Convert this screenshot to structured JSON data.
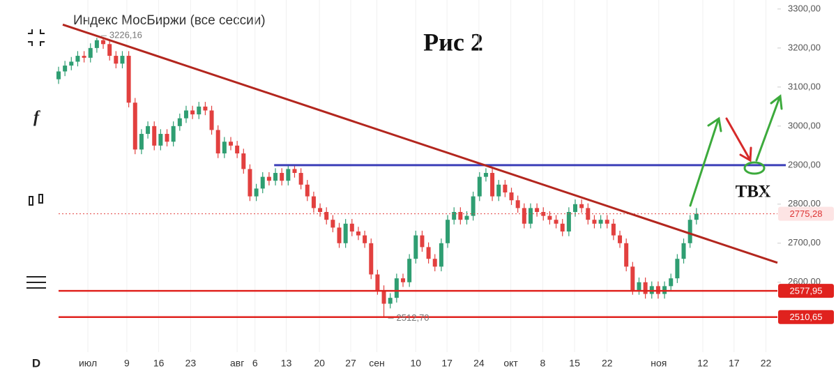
{
  "toolbar": {
    "fx": "f",
    "interval": "D"
  },
  "chart_data": {
    "type": "candlestick",
    "title": "Индекс МосБиржи (все сессии)",
    "annotations": {
      "figure": "Рис 2",
      "entry": "ТВХ"
    },
    "up_color": "#2f9e72",
    "down_color": "#e2403f",
    "open": [
      3120,
      3140,
      3155,
      3165,
      3180,
      3175,
      3200,
      3220,
      3210,
      3180,
      3160,
      3180,
      3060,
      2940,
      2980,
      3000,
      2950,
      2980,
      2960,
      3000,
      3020,
      3040,
      3030,
      3050,
      3040,
      2990,
      2930,
      2960,
      2950,
      2930,
      2890,
      2820,
      2840,
      2870,
      2860,
      2880,
      2860,
      2890,
      2880,
      2850,
      2820,
      2790,
      2780,
      2760,
      2740,
      2700,
      2750,
      2730,
      2720,
      2700,
      2620,
      2580,
      2545,
      2560,
      2610,
      2600,
      2660,
      2720,
      2690,
      2660,
      2640,
      2700,
      2760,
      2780,
      2760,
      2770,
      2820,
      2870,
      2880,
      2820,
      2850,
      2830,
      2810,
      2790,
      2750,
      2790,
      2780,
      2770,
      2760,
      2750,
      2730,
      2780,
      2800,
      2790,
      2760,
      2750,
      2760,
      2750,
      2720,
      2700,
      2640,
      2580,
      2600,
      2570,
      2590,
      2570,
      2590,
      2610,
      2660,
      2700,
      2760
    ],
    "high": [
      3152,
      3167,
      3177,
      3192,
      3192,
      3212,
      3226.16,
      3224,
      3222,
      3192,
      3192,
      3192,
      3072,
      2992,
      3012,
      3012,
      2992,
      2992,
      3012,
      3032,
      3052,
      3052,
      3062,
      3062,
      3052,
      3002,
      2972,
      2972,
      2962,
      2942,
      2902,
      2852,
      2882,
      2882,
      2892,
      2892,
      2902,
      2902,
      2892,
      2862,
      2832,
      2802,
      2792,
      2772,
      2752,
      2762,
      2762,
      2742,
      2732,
      2712,
      2632,
      2592,
      2572,
      2622,
      2622,
      2672,
      2732,
      2732,
      2702,
      2672,
      2712,
      2772,
      2792,
      2792,
      2782,
      2832,
      2882,
      2892,
      2892,
      2862,
      2862,
      2842,
      2822,
      2802,
      2802,
      2802,
      2792,
      2782,
      2772,
      2762,
      2792,
      2812,
      2812,
      2802,
      2772,
      2772,
      2772,
      2762,
      2732,
      2712,
      2652,
      2612,
      2612,
      2602,
      2602,
      2602,
      2622,
      2672,
      2712,
      2772,
      2790
    ],
    "low": [
      3108,
      3128,
      3143,
      3153,
      3163,
      3163,
      3188,
      3198,
      3168,
      3148,
      3148,
      3048,
      2928,
      2928,
      2968,
      2938,
      2938,
      2948,
      2948,
      2988,
      3008,
      3018,
      3018,
      3028,
      2978,
      2918,
      2918,
      2938,
      2918,
      2878,
      2808,
      2808,
      2828,
      2848,
      2848,
      2848,
      2848,
      2868,
      2838,
      2808,
      2778,
      2768,
      2748,
      2728,
      2688,
      2688,
      2718,
      2708,
      2688,
      2608,
      2568,
      2512.7,
      2533,
      2548,
      2588,
      2588,
      2648,
      2678,
      2648,
      2628,
      2628,
      2688,
      2748,
      2748,
      2748,
      2758,
      2808,
      2858,
      2808,
      2808,
      2818,
      2798,
      2778,
      2738,
      2738,
      2768,
      2758,
      2748,
      2738,
      2718,
      2718,
      2768,
      2778,
      2748,
      2738,
      2738,
      2738,
      2708,
      2688,
      2628,
      2568,
      2568,
      2558,
      2558,
      2558,
      2558,
      2578,
      2598,
      2648,
      2688,
      2748
    ],
    "close": [
      3140,
      3155,
      3165,
      3180,
      3175,
      3200,
      3220,
      3210,
      3180,
      3160,
      3180,
      3060,
      2940,
      2980,
      3000,
      2950,
      2980,
      2960,
      3000,
      3020,
      3040,
      3030,
      3050,
      3040,
      2990,
      2930,
      2960,
      2950,
      2930,
      2890,
      2820,
      2840,
      2870,
      2860,
      2880,
      2860,
      2890,
      2880,
      2850,
      2820,
      2790,
      2780,
      2760,
      2740,
      2700,
      2750,
      2730,
      2720,
      2700,
      2620,
      2580,
      2545,
      2560,
      2610,
      2600,
      2660,
      2720,
      2690,
      2660,
      2640,
      2700,
      2760,
      2780,
      2760,
      2770,
      2820,
      2870,
      2880,
      2820,
      2850,
      2830,
      2810,
      2790,
      2750,
      2790,
      2780,
      2770,
      2760,
      2750,
      2730,
      2780,
      2800,
      2790,
      2760,
      2750,
      2760,
      2750,
      2720,
      2700,
      2640,
      2580,
      2600,
      2570,
      2590,
      2570,
      2590,
      2610,
      2660,
      2700,
      2760,
      2775.28
    ],
    "xlim": [
      -1.53,
      112.7
    ],
    "xticks": [
      {
        "value": 4.6,
        "label": "июл"
      },
      {
        "value": 10.7,
        "label": "9"
      },
      {
        "value": 15.7,
        "label": "16"
      },
      {
        "value": 20.7,
        "label": "23"
      },
      {
        "value": 28,
        "label": "авг"
      },
      {
        "value": 30.8,
        "label": "6"
      },
      {
        "value": 35.7,
        "label": "13"
      },
      {
        "value": 40.9,
        "label": "20"
      },
      {
        "value": 45.8,
        "label": "27"
      },
      {
        "value": 49.9,
        "label": "сен"
      },
      {
        "value": 56,
        "label": "10"
      },
      {
        "value": 60.9,
        "label": "17"
      },
      {
        "value": 65.9,
        "label": "24"
      },
      {
        "value": 70.9,
        "label": "окт"
      },
      {
        "value": 75.9,
        "label": "8"
      },
      {
        "value": 80.9,
        "label": "15"
      },
      {
        "value": 86,
        "label": "22"
      },
      {
        "value": 94.1,
        "label": "ноя"
      },
      {
        "value": 101,
        "label": "12"
      },
      {
        "value": 105.9,
        "label": "17"
      },
      {
        "value": 110.9,
        "label": "22"
      }
    ],
    "ylim": [
      2421,
      3323
    ],
    "yticks": [
      {
        "value": 2600,
        "label": "2600,00"
      },
      {
        "value": 2700,
        "label": "2700,00"
      },
      {
        "value": 2800,
        "label": "2800,00"
      },
      {
        "value": 2900,
        "label": "2900,00"
      },
      {
        "value": 3000,
        "label": "3000,00"
      },
      {
        "value": 3100,
        "label": "3100,00"
      },
      {
        "value": 3200,
        "label": "3200,00"
      },
      {
        "value": 3300,
        "label": "3300,00"
      }
    ],
    "trendline": {
      "color": "#b3261e",
      "x": [
        0.66,
        112.7
      ],
      "y": [
        3260,
        2650
      ]
    },
    "resistance": {
      "color": "#3b3fb8",
      "value": 2900,
      "start": 33.8
    },
    "supports": {
      "color": "#e0221e",
      "values": [
        2577.95,
        2510.65
      ],
      "value_labels": [
        "2577,95",
        "2510,65"
      ]
    },
    "last_price": {
      "value": 2775.28,
      "label": "2775,28"
    },
    "extremes": {
      "index": [
        6,
        51
      ],
      "values": [
        3226.16,
        2512.7
      ],
      "value_labels": [
        "3226,16",
        "2512,70"
      ]
    }
  }
}
